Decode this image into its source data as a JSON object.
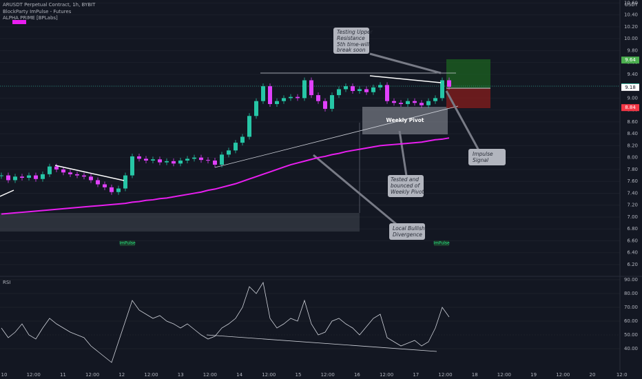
{
  "header": {
    "symbol": "ARUSDT Perpetual Contract, 1h, BYBIT",
    "indicator_1": "BlockParty ImPulse - Futures",
    "indicator_2": "ALPHA PRIME [BPLabs]"
  },
  "price_axis": {
    "unit": "USDT",
    "ylim": [
      6.2,
      10.65
    ],
    "ticks": [
      {
        "value": 10.6,
        "label": "10.60"
      },
      {
        "value": 10.4,
        "label": "10.40"
      },
      {
        "value": 10.2,
        "label": "10.20"
      },
      {
        "value": 10,
        "label": "10.00"
      },
      {
        "value": 9.8,
        "label": "9.80"
      },
      {
        "value": 9.6,
        "label": "9.60"
      },
      {
        "value": 9.4,
        "label": "9.40"
      },
      {
        "value": 9.2,
        "label": "9.20"
      },
      {
        "value": 9,
        "label": "9.00"
      },
      {
        "value": 8.8,
        "label": "8.80"
      },
      {
        "value": 8.6,
        "label": "8.60"
      },
      {
        "value": 8.4,
        "label": "8.40"
      },
      {
        "value": 8.2,
        "label": "8.20"
      },
      {
        "value": 8,
        "label": "8.00"
      },
      {
        "value": 7.8,
        "label": "7.80"
      },
      {
        "value": 7.6,
        "label": "7.60"
      },
      {
        "value": 7.4,
        "label": "7.40"
      },
      {
        "value": 7.2,
        "label": "7.20"
      },
      {
        "value": 7,
        "label": "7.00"
      },
      {
        "value": 6.8,
        "label": "6.80"
      },
      {
        "value": 6.6,
        "label": "6.60"
      },
      {
        "value": 6.4,
        "label": "6.40"
      },
      {
        "value": 6.2,
        "label": "6.20"
      }
    ],
    "tags": [
      {
        "value": 9.64,
        "label": "9.64",
        "color": "#4caf50"
      },
      {
        "value": 9.19,
        "label": "9.19",
        "color": "#22ab94"
      },
      {
        "value": 9.18,
        "label": "9.18",
        "color": "#ffffff"
      },
      {
        "value": 8.84,
        "label": "8.84",
        "color": "#f23645"
      }
    ]
  },
  "close": [
    7.7,
    7.62,
    7.68,
    7.66,
    7.7,
    7.64,
    7.72,
    7.85,
    7.8,
    7.75,
    7.72,
    7.7,
    7.68,
    7.62,
    7.55,
    7.5,
    7.42,
    7.48,
    7.7,
    8.02,
    7.98,
    7.95,
    7.97,
    7.92,
    7.94,
    7.9,
    7.95,
    7.98,
    8.0,
    7.96,
    7.95,
    7.88,
    8.05,
    8.12,
    8.25,
    8.35,
    8.7,
    8.95,
    9.2,
    8.9,
    8.95,
    9.0,
    9.02,
    9.0,
    9.3,
    9.05,
    8.95,
    8.82,
    9.05,
    9.15,
    9.2,
    9.12,
    9.15,
    9.1,
    9.18,
    9.22,
    8.95,
    8.92,
    8.9,
    8.95,
    8.92,
    8.88,
    8.95,
    9.0,
    9.3,
    9.19
  ],
  "ma": [
    7.05,
    7.06,
    7.07,
    7.08,
    7.09,
    7.1,
    7.11,
    7.12,
    7.13,
    7.14,
    7.15,
    7.16,
    7.17,
    7.18,
    7.19,
    7.2,
    7.21,
    7.22,
    7.23,
    7.25,
    7.26,
    7.28,
    7.29,
    7.31,
    7.32,
    7.34,
    7.36,
    7.38,
    7.4,
    7.42,
    7.45,
    7.47,
    7.5,
    7.53,
    7.56,
    7.6,
    7.64,
    7.68,
    7.72,
    7.76,
    7.8,
    7.84,
    7.88,
    7.91,
    7.94,
    7.97,
    8.0,
    8.02,
    8.05,
    8.07,
    8.1,
    8.12,
    8.14,
    8.16,
    8.18,
    8.2,
    8.21,
    8.22,
    8.23,
    8.24,
    8.25,
    8.26,
    8.28,
    8.3,
    8.31,
    8.33
  ],
  "rsi": {
    "title": "RSI",
    "ylim": [
      25,
      93
    ],
    "ticks": [
      {
        "value": 90,
        "label": "90.00"
      },
      {
        "value": 80,
        "label": "80.00"
      },
      {
        "value": 70,
        "label": "70.00"
      },
      {
        "value": 60,
        "label": "60.00"
      },
      {
        "value": 50,
        "label": "50.00"
      },
      {
        "value": 40,
        "label": "40.00"
      }
    ],
    "values": [
      55,
      48,
      52,
      58,
      50,
      47,
      55,
      62,
      58,
      55,
      52,
      50,
      48,
      42,
      38,
      34,
      30,
      45,
      60,
      75,
      68,
      65,
      62,
      64,
      60,
      58,
      55,
      58,
      54,
      50,
      47,
      49,
      55,
      58,
      62,
      70,
      85,
      80,
      88,
      62,
      55,
      58,
      62,
      60,
      75,
      58,
      50,
      52,
      60,
      62,
      58,
      55,
      50,
      56,
      62,
      65,
      48,
      45,
      42,
      44,
      46,
      42,
      45,
      55,
      70,
      63
    ]
  },
  "time_axis": [
    "10",
    "12:00",
    "11",
    "12:00",
    "12",
    "12:00",
    "13",
    "12:00",
    "14",
    "12:00",
    "15",
    "12:00",
    "16",
    "12:00",
    "17",
    "12:00",
    "18",
    "12:00",
    "19",
    "12:00",
    "20",
    "12:0"
  ],
  "annotations": {
    "resistance": [
      "Testing Upper",
      "Resistance",
      "5th time-will",
      "break soon"
    ],
    "pivot": "Weekly Pivot",
    "impulse": [
      "Impulse",
      "Signal"
    ],
    "tested": [
      "Tested and",
      "bounced of",
      "Weekly Pivot"
    ],
    "divergence": [
      "Local Bullish",
      "Divergence"
    ],
    "impulse_tag_1": "ImPulse",
    "impulse_tag_2": "ImPulse"
  }
}
